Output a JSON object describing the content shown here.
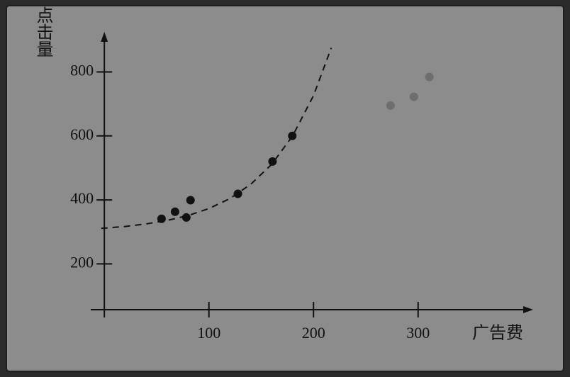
{
  "chart_data": {
    "type": "scatter",
    "x_label": "广告费",
    "y_label": "点击量",
    "xlim": [
      -13,
      410
    ],
    "ylim": [
      57,
      925
    ],
    "xticks": [
      100,
      200,
      300
    ],
    "yticks": [
      200,
      400,
      600,
      800
    ],
    "series": [
      {
        "color": "#111111",
        "x": [
          54.7,
          67.6,
          78.4,
          82.4,
          127.7,
          160.8,
          179.7
        ],
        "values": [
          341,
          363,
          345,
          399,
          419,
          520,
          600
        ]
      },
      {
        "color": "#6e6e6e",
        "x": [
          273.6,
          296,
          310.8
        ],
        "values": [
          695,
          722,
          784
        ]
      }
    ],
    "curve": {
      "x": [
        -3,
        20,
        40,
        60,
        80,
        100,
        120,
        140,
        160,
        180,
        200,
        217
      ],
      "values": [
        311,
        317,
        325,
        336,
        351,
        373,
        404,
        449,
        511,
        600,
        726,
        875
      ]
    }
  }
}
